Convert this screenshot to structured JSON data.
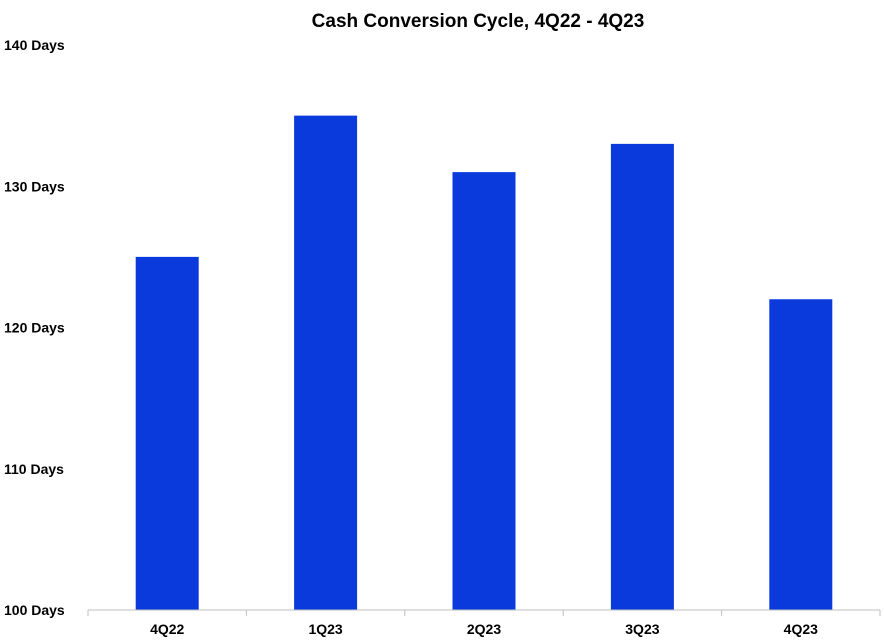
{
  "chart_data": {
    "type": "bar",
    "title": "Cash Conversion Cycle, 4Q22 - 4Q23",
    "xlabel": "",
    "ylabel": "",
    "categories": [
      "4Q22",
      "1Q23",
      "2Q23",
      "3Q23",
      "4Q23"
    ],
    "values": [
      125,
      135,
      131,
      133,
      122
    ],
    "ylim": [
      100,
      140
    ],
    "y_ticks": [
      {
        "value": 100,
        "label": "100 Days"
      },
      {
        "value": 110,
        "label": "110 Days"
      },
      {
        "value": 120,
        "label": "120 Days"
      },
      {
        "value": 130,
        "label": "130 Days"
      },
      {
        "value": 140,
        "label": "140 Days"
      }
    ],
    "grid": false,
    "legend": "none",
    "bar_color": "#0a3adb",
    "axis_color": "#bfbfbf"
  }
}
